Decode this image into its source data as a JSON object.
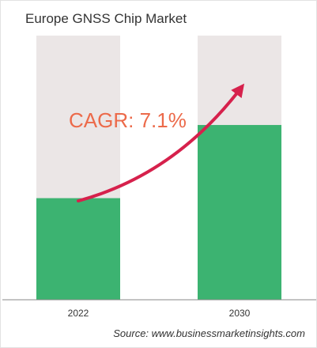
{
  "chart_data": {
    "type": "bar",
    "title": "Europe GNSS Chip Market",
    "categories": [
      "2022",
      "2030"
    ],
    "values": [
      1.0,
      1.72
    ],
    "ylim": [
      0,
      2.6
    ],
    "grid": false,
    "annotation": "CAGR: 7.1%",
    "source": "Source: www.businessmarketinsights.com",
    "colors": {
      "bar": "#3cb371",
      "bar_background": "#ebe6e6",
      "arrow": "#d6214c",
      "annotation": "#ec6a4a",
      "axis": "#888888"
    }
  }
}
